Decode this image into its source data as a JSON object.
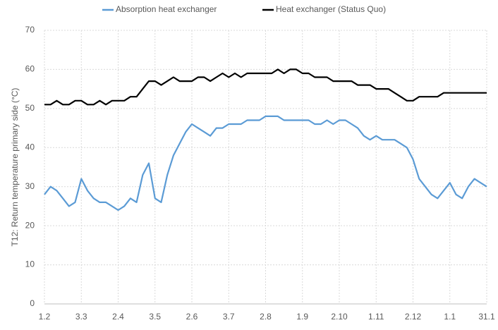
{
  "chart_data": {
    "type": "line",
    "ylabel": "T12: Return temperature primary side (°C)",
    "categories": [
      "1.2",
      null,
      null,
      null,
      null,
      null,
      "3.3",
      null,
      null,
      null,
      null,
      null,
      "2.4",
      null,
      null,
      null,
      null,
      null,
      "3.5",
      null,
      null,
      null,
      null,
      null,
      "2.6",
      null,
      null,
      null,
      null,
      null,
      "3.7",
      null,
      null,
      null,
      null,
      null,
      "2.8",
      null,
      null,
      null,
      null,
      null,
      "1.9",
      null,
      null,
      null,
      null,
      null,
      "2.10",
      null,
      null,
      null,
      null,
      null,
      "1.11",
      null,
      null,
      null,
      null,
      null,
      "2.12",
      null,
      null,
      null,
      null,
      null,
      "1.1",
      null,
      null,
      null,
      null,
      null,
      "31.1"
    ],
    "series": [
      {
        "name": "Absorption heat exchanger",
        "color": "#5b9bd5",
        "values": [
          28,
          30,
          29,
          27,
          25,
          26,
          32,
          29,
          27,
          26,
          26,
          25,
          24,
          25,
          27,
          26,
          33,
          36,
          27,
          26,
          33,
          38,
          41,
          44,
          46,
          45,
          44,
          43,
          45,
          45,
          46,
          46,
          46,
          47,
          47,
          47,
          48,
          48,
          48,
          47,
          47,
          47,
          47,
          47,
          46,
          46,
          47,
          46,
          47,
          47,
          46,
          45,
          43,
          42,
          43,
          42,
          42,
          42,
          41,
          40,
          37,
          32,
          30,
          28,
          27,
          29,
          31,
          28,
          27,
          30,
          32,
          31,
          30
        ]
      },
      {
        "name": "Heat exchanger (Status Quo)",
        "color": "#000000",
        "values": [
          51,
          51,
          52,
          51,
          51,
          52,
          52,
          51,
          51,
          52,
          51,
          52,
          52,
          52,
          53,
          53,
          55,
          57,
          57,
          56,
          57,
          58,
          57,
          57,
          57,
          58,
          58,
          57,
          58,
          59,
          58,
          59,
          58,
          59,
          59,
          59,
          59,
          59,
          60,
          59,
          60,
          60,
          59,
          59,
          58,
          58,
          58,
          57,
          57,
          57,
          57,
          56,
          56,
          56,
          55,
          55,
          55,
          54,
          53,
          52,
          52,
          53,
          53,
          53,
          53,
          54,
          54,
          54,
          54,
          54,
          54,
          54,
          54
        ]
      }
    ],
    "ylim": [
      0,
      70
    ],
    "yticks": [
      0,
      10,
      20,
      30,
      40,
      50,
      60,
      70
    ],
    "grid": true
  }
}
